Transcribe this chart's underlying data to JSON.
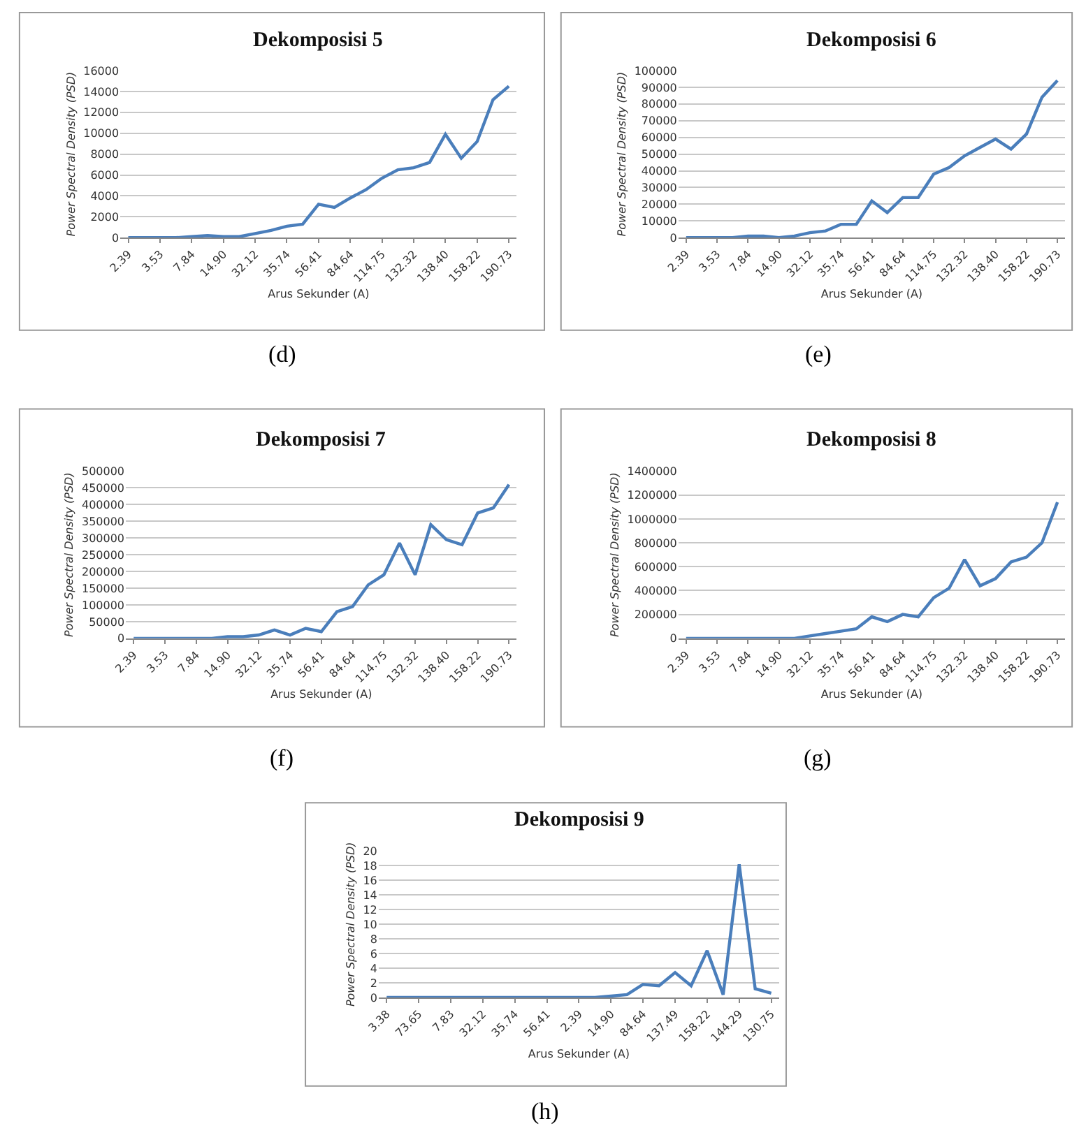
{
  "chart_data": [
    {
      "type": "line",
      "title": "Dekomposisi 5",
      "xlabel": "Arus Sekunder (A)",
      "ylabel": "Power Spectral Density (PSD)",
      "annotations": [
        "(d)"
      ],
      "categories": [
        "2.39",
        null,
        "3.53",
        null,
        "7.84",
        null,
        "14.90",
        null,
        "32.12",
        null,
        "35.74",
        null,
        "56.41",
        null,
        "84.64",
        null,
        "114.75",
        null,
        "132.32",
        null,
        "138.40",
        null,
        "158.22",
        null,
        "190.73"
      ],
      "series": [
        {
          "color": "#4a7ebb",
          "values": [
            0,
            0,
            0,
            0,
            100,
            200,
            100,
            100,
            400,
            700,
            1100,
            1300,
            3200,
            2900,
            3800,
            4600,
            5700,
            6500,
            6700,
            7200,
            9900,
            7600,
            9200,
            13200,
            14500
          ]
        }
      ],
      "ylim": [
        0,
        16000
      ],
      "yticks": [
        0,
        2000,
        4000,
        6000,
        8000,
        10000,
        12000,
        14000,
        16000
      ],
      "grid": "y",
      "marker": "none",
      "line_style": "solid"
    },
    {
      "type": "line",
      "title": "Dekomposisi 6",
      "xlabel": "Arus Sekunder (A)",
      "ylabel": "Power Spectral Density (PSD)",
      "annotations": [
        "(e)"
      ],
      "categories": [
        "2.39",
        null,
        "3.53",
        null,
        "7.84",
        null,
        "14.90",
        null,
        "32.12",
        null,
        "35.74",
        null,
        "56.41",
        null,
        "84.64",
        null,
        "114.75",
        null,
        "132.32",
        null,
        "138.40",
        null,
        "158.22",
        null,
        "190.73"
      ],
      "series": [
        {
          "color": "#4a7ebb",
          "values": [
            0,
            0,
            0,
            0,
            1000,
            1000,
            0,
            1000,
            3000,
            4000,
            8000,
            8000,
            22000,
            15000,
            24000,
            24000,
            38000,
            42000,
            49000,
            54000,
            59000,
            53000,
            62000,
            84000,
            94000
          ]
        }
      ],
      "ylim": [
        0,
        100000
      ],
      "yticks": [
        0,
        10000,
        20000,
        30000,
        40000,
        50000,
        60000,
        70000,
        80000,
        90000,
        100000
      ],
      "grid": "y",
      "marker": "none",
      "line_style": "solid"
    },
    {
      "type": "line",
      "title": "Dekomposisi 7",
      "xlabel": "Arus Sekunder (A)",
      "ylabel": "Power Spectral Density (PSD)",
      "annotations": [
        "(f)"
      ],
      "categories": [
        "2.39",
        null,
        "3.53",
        null,
        "7.84",
        null,
        "14.90",
        null,
        "32.12",
        null,
        "35.74",
        null,
        "56.41",
        null,
        "84.64",
        null,
        "114.75",
        null,
        "132.32",
        null,
        "138.40",
        null,
        "158.22",
        null,
        "190.73"
      ],
      "series": [
        {
          "color": "#4a7ebb",
          "values": [
            0,
            0,
            0,
            0,
            0,
            0,
            5000,
            5000,
            10000,
            25000,
            10000,
            30000,
            20000,
            80000,
            95000,
            160000,
            190000,
            285000,
            190000,
            340000,
            295000,
            280000,
            375000,
            390000,
            460000
          ]
        }
      ],
      "ylim": [
        0,
        500000
      ],
      "yticks": [
        0,
        50000,
        100000,
        150000,
        200000,
        250000,
        300000,
        350000,
        400000,
        450000,
        500000
      ],
      "grid": "y",
      "marker": "none",
      "line_style": "solid"
    },
    {
      "type": "line",
      "title": "Dekomposisi 8",
      "xlabel": "Arus Sekunder (A)",
      "ylabel": "Power Spectral Density (PSD)",
      "annotations": [
        "(g)"
      ],
      "categories": [
        "2.39",
        null,
        "3.53",
        null,
        "7.84",
        null,
        "14.90",
        null,
        "32.12",
        null,
        "35.74",
        null,
        "56.41",
        null,
        "84.64",
        null,
        "114.75",
        null,
        "132.32",
        null,
        "138.40",
        null,
        "158.22",
        null,
        "190.73"
      ],
      "series": [
        {
          "color": "#4a7ebb",
          "values": [
            0,
            0,
            0,
            0,
            0,
            0,
            0,
            0,
            20000,
            40000,
            60000,
            80000,
            180000,
            140000,
            200000,
            180000,
            340000,
            420000,
            660000,
            440000,
            500000,
            640000,
            680000,
            800000,
            1140000
          ]
        }
      ],
      "ylim": [
        0,
        1400000
      ],
      "yticks": [
        0,
        200000,
        400000,
        600000,
        800000,
        1000000,
        1200000,
        1400000
      ],
      "grid": "y",
      "marker": "none",
      "line_style": "solid"
    },
    {
      "type": "line",
      "title": "Dekomposisi 9",
      "xlabel": "Arus Sekunder (A)",
      "ylabel": "Power Spectral Density (PSD)",
      "annotations": [
        "(h)"
      ],
      "categories": [
        "3.38",
        null,
        "73.65",
        null,
        "7.83",
        null,
        "32.12",
        null,
        "35.74",
        null,
        "56.41",
        null,
        "2.39",
        null,
        "14.90",
        null,
        "84.64",
        null,
        "137.49",
        null,
        "158.22",
        null,
        "144.29",
        null,
        "130.75"
      ],
      "series": [
        {
          "color": "#4a7ebb",
          "values": [
            0,
            0,
            0,
            0,
            0,
            0,
            0,
            0,
            0,
            0,
            0,
            0,
            0,
            0,
            0.2,
            0.4,
            1.8,
            1.6,
            3.4,
            1.6,
            6.4,
            0.4,
            18.2,
            1.2,
            0.6
          ]
        }
      ],
      "ylim": [
        0,
        20
      ],
      "yticks": [
        0,
        2,
        4,
        6,
        8,
        10,
        12,
        14,
        16,
        18,
        20
      ],
      "grid": "y",
      "marker": "none",
      "line_style": "solid"
    }
  ]
}
